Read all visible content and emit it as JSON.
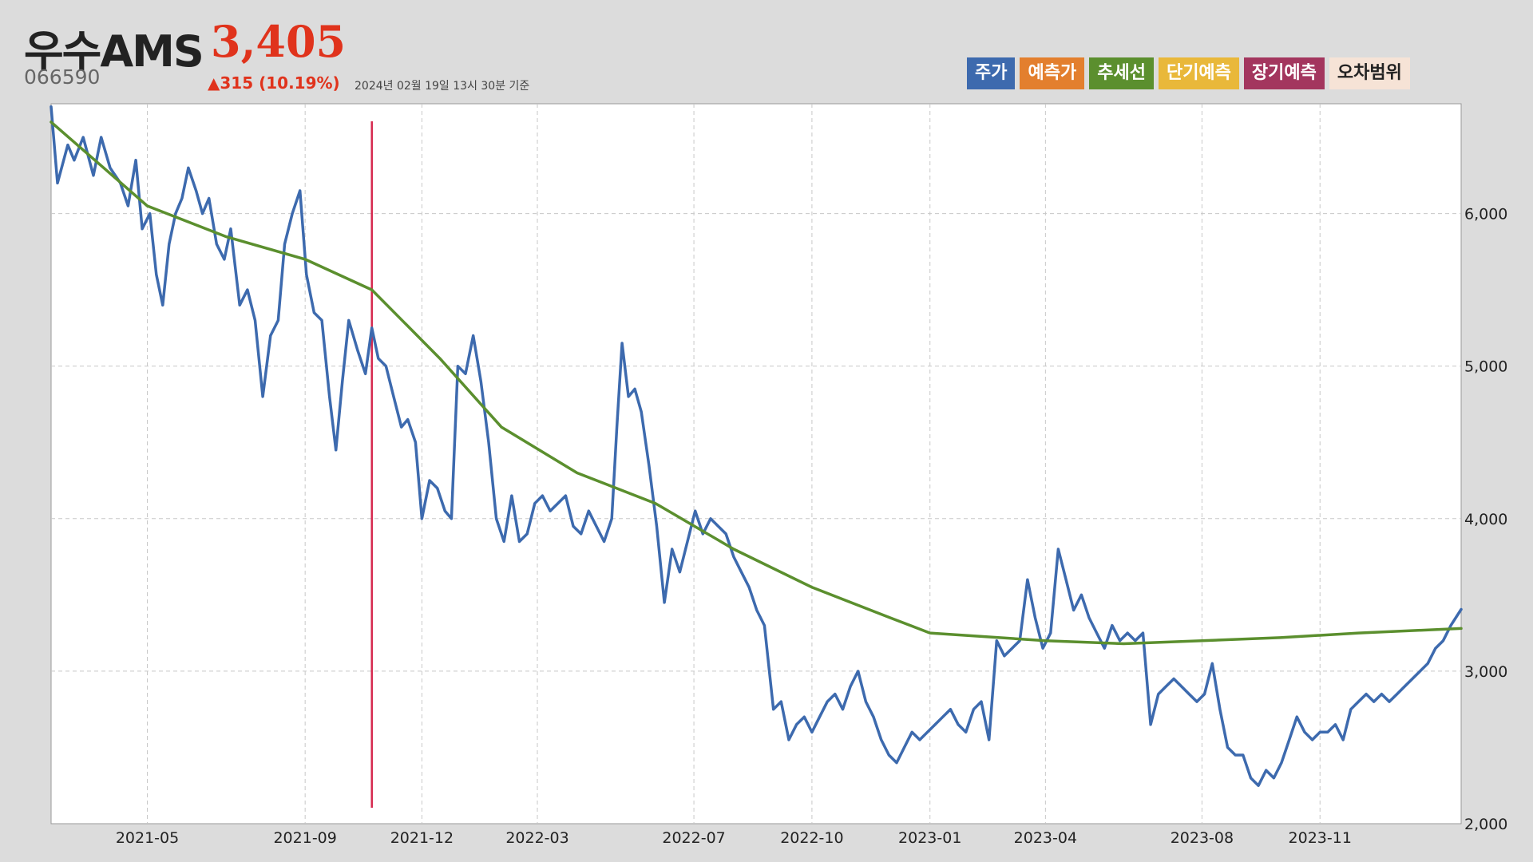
{
  "header": {
    "name": "우수AMS",
    "price": "3,405",
    "code": "066590",
    "change": "▲315 (10.19%)",
    "date": "2024년 02월 19일 13시 30분 기준"
  },
  "legend": [
    {
      "label": "주가",
      "color": "#3d6aae"
    },
    {
      "label": "예측가",
      "color": "#e37f2e"
    },
    {
      "label": "추세선",
      "color": "#5b8f2e"
    },
    {
      "label": "단기예측",
      "color": "#e9b83a"
    },
    {
      "label": "장기예측",
      "color": "#a3365e"
    },
    {
      "label": "오차범위",
      "color": "#f6e3d6"
    }
  ],
  "chart_data": {
    "type": "line",
    "title": "",
    "xlabel": "",
    "ylabel": "",
    "ylim": [
      2000,
      6720
    ],
    "xlim": [
      "2021-02-15",
      "2024-02-19"
    ],
    "grid": true,
    "y_ticks": [
      {
        "value": 2000,
        "label": "2,000"
      },
      {
        "value": 3000,
        "label": "3,000"
      },
      {
        "value": 4000,
        "label": "4,000"
      },
      {
        "value": 5000,
        "label": "5,000"
      },
      {
        "value": 6000,
        "label": "6,000"
      }
    ],
    "x_ticks": [
      {
        "value": "2021-05-01",
        "label": "2021-05"
      },
      {
        "value": "2021-09-01",
        "label": "2021-09"
      },
      {
        "value": "2021-12-01",
        "label": "2021-12"
      },
      {
        "value": "2022-03-01",
        "label": "2022-03"
      },
      {
        "value": "2022-07-01",
        "label": "2022-07"
      },
      {
        "value": "2022-10-01",
        "label": "2022-10"
      },
      {
        "value": "2023-01-01",
        "label": "2023-01"
      },
      {
        "value": "2023-04-01",
        "label": "2023-04"
      },
      {
        "value": "2023-08-01",
        "label": "2023-08"
      },
      {
        "value": "2023-11-01",
        "label": "2023-11"
      }
    ],
    "marker_line": {
      "x": "2021-10-23",
      "color": "#d6294f"
    },
    "series": [
      {
        "name": "주가",
        "color": "#3d6aae",
        "points": [
          [
            "2021-02-15",
            6700
          ],
          [
            "2021-02-20",
            6200
          ],
          [
            "2021-02-28",
            6450
          ],
          [
            "2021-03-05",
            6350
          ],
          [
            "2021-03-12",
            6500
          ],
          [
            "2021-03-20",
            6250
          ],
          [
            "2021-03-26",
            6500
          ],
          [
            "2021-04-02",
            6300
          ],
          [
            "2021-04-10",
            6200
          ],
          [
            "2021-04-16",
            6050
          ],
          [
            "2021-04-22",
            6350
          ],
          [
            "2021-04-27",
            5900
          ],
          [
            "2021-05-03",
            6000
          ],
          [
            "2021-05-08",
            5600
          ],
          [
            "2021-05-13",
            5400
          ],
          [
            "2021-05-18",
            5800
          ],
          [
            "2021-05-23",
            6000
          ],
          [
            "2021-05-28",
            6100
          ],
          [
            "2021-06-02",
            6300
          ],
          [
            "2021-06-08",
            6150
          ],
          [
            "2021-06-13",
            6000
          ],
          [
            "2021-06-18",
            6100
          ],
          [
            "2021-06-24",
            5800
          ],
          [
            "2021-06-30",
            5700
          ],
          [
            "2021-07-05",
            5900
          ],
          [
            "2021-07-12",
            5400
          ],
          [
            "2021-07-18",
            5500
          ],
          [
            "2021-07-24",
            5300
          ],
          [
            "2021-07-30",
            4800
          ],
          [
            "2021-08-05",
            5200
          ],
          [
            "2021-08-11",
            5300
          ],
          [
            "2021-08-16",
            5800
          ],
          [
            "2021-08-22",
            6000
          ],
          [
            "2021-08-28",
            6150
          ],
          [
            "2021-09-02",
            5600
          ],
          [
            "2021-09-08",
            5350
          ],
          [
            "2021-09-14",
            5300
          ],
          [
            "2021-09-20",
            4800
          ],
          [
            "2021-09-25",
            4450
          ],
          [
            "2021-09-30",
            4900
          ],
          [
            "2021-10-05",
            5300
          ],
          [
            "2021-10-12",
            5100
          ],
          [
            "2021-10-18",
            4950
          ],
          [
            "2021-10-23",
            5250
          ],
          [
            "2021-10-28",
            5050
          ],
          [
            "2021-11-03",
            5000
          ],
          [
            "2021-11-09",
            4800
          ],
          [
            "2021-11-15",
            4600
          ],
          [
            "2021-11-20",
            4650
          ],
          [
            "2021-11-26",
            4500
          ],
          [
            "2021-12-01",
            4000
          ],
          [
            "2021-12-07",
            4250
          ],
          [
            "2021-12-13",
            4200
          ],
          [
            "2021-12-19",
            4050
          ],
          [
            "2021-12-24",
            4000
          ],
          [
            "2021-12-29",
            5000
          ],
          [
            "2022-01-04",
            4950
          ],
          [
            "2022-01-10",
            5200
          ],
          [
            "2022-01-16",
            4900
          ],
          [
            "2022-01-22",
            4500
          ],
          [
            "2022-01-28",
            4000
          ],
          [
            "2022-02-03",
            3850
          ],
          [
            "2022-02-09",
            4150
          ],
          [
            "2022-02-15",
            3850
          ],
          [
            "2022-02-21",
            3900
          ],
          [
            "2022-02-27",
            4100
          ],
          [
            "2022-03-05",
            4150
          ],
          [
            "2022-03-11",
            4050
          ],
          [
            "2022-03-17",
            4100
          ],
          [
            "2022-03-23",
            4150
          ],
          [
            "2022-03-29",
            3950
          ],
          [
            "2022-04-04",
            3900
          ],
          [
            "2022-04-10",
            4050
          ],
          [
            "2022-04-16",
            3950
          ],
          [
            "2022-04-22",
            3850
          ],
          [
            "2022-04-28",
            4000
          ],
          [
            "2022-05-02",
            4600
          ],
          [
            "2022-05-06",
            5150
          ],
          [
            "2022-05-11",
            4800
          ],
          [
            "2022-05-16",
            4850
          ],
          [
            "2022-05-21",
            4700
          ],
          [
            "2022-05-27",
            4350
          ],
          [
            "2022-06-02",
            3950
          ],
          [
            "2022-06-08",
            3450
          ],
          [
            "2022-06-14",
            3800
          ],
          [
            "2022-06-20",
            3650
          ],
          [
            "2022-06-26",
            3850
          ],
          [
            "2022-07-02",
            4050
          ],
          [
            "2022-07-08",
            3900
          ],
          [
            "2022-07-14",
            4000
          ],
          [
            "2022-07-20",
            3950
          ],
          [
            "2022-07-26",
            3900
          ],
          [
            "2022-08-01",
            3750
          ],
          [
            "2022-08-07",
            3650
          ],
          [
            "2022-08-13",
            3550
          ],
          [
            "2022-08-19",
            3400
          ],
          [
            "2022-08-25",
            3300
          ],
          [
            "2022-09-01",
            2750
          ],
          [
            "2022-09-07",
            2800
          ],
          [
            "2022-09-13",
            2550
          ],
          [
            "2022-09-19",
            2650
          ],
          [
            "2022-09-25",
            2700
          ],
          [
            "2022-10-01",
            2600
          ],
          [
            "2022-10-07",
            2700
          ],
          [
            "2022-10-13",
            2800
          ],
          [
            "2022-10-19",
            2850
          ],
          [
            "2022-10-25",
            2750
          ],
          [
            "2022-10-31",
            2900
          ],
          [
            "2022-11-06",
            3000
          ],
          [
            "2022-11-12",
            2800
          ],
          [
            "2022-11-18",
            2700
          ],
          [
            "2022-11-24",
            2550
          ],
          [
            "2022-11-30",
            2450
          ],
          [
            "2022-12-06",
            2400
          ],
          [
            "2022-12-12",
            2500
          ],
          [
            "2022-12-18",
            2600
          ],
          [
            "2022-12-24",
            2550
          ],
          [
            "2022-12-30",
            2600
          ],
          [
            "2023-01-05",
            2650
          ],
          [
            "2023-01-11",
            2700
          ],
          [
            "2023-01-17",
            2750
          ],
          [
            "2023-01-23",
            2650
          ],
          [
            "2023-01-29",
            2600
          ],
          [
            "2023-02-04",
            2750
          ],
          [
            "2023-02-10",
            2800
          ],
          [
            "2023-02-16",
            2550
          ],
          [
            "2023-02-22",
            3200
          ],
          [
            "2023-02-28",
            3100
          ],
          [
            "2023-03-06",
            3150
          ],
          [
            "2023-03-12",
            3200
          ],
          [
            "2023-03-18",
            3600
          ],
          [
            "2023-03-24",
            3350
          ],
          [
            "2023-03-30",
            3150
          ],
          [
            "2023-04-05",
            3250
          ],
          [
            "2023-04-11",
            3800
          ],
          [
            "2023-04-17",
            3600
          ],
          [
            "2023-04-23",
            3400
          ],
          [
            "2023-04-29",
            3500
          ],
          [
            "2023-05-05",
            3350
          ],
          [
            "2023-05-11",
            3250
          ],
          [
            "2023-05-17",
            3150
          ],
          [
            "2023-05-23",
            3300
          ],
          [
            "2023-05-29",
            3200
          ],
          [
            "2023-06-04",
            3250
          ],
          [
            "2023-06-10",
            3200
          ],
          [
            "2023-06-16",
            3250
          ],
          [
            "2023-06-22",
            2650
          ],
          [
            "2023-06-28",
            2850
          ],
          [
            "2023-07-04",
            2900
          ],
          [
            "2023-07-10",
            2950
          ],
          [
            "2023-07-16",
            2900
          ],
          [
            "2023-07-22",
            2850
          ],
          [
            "2023-07-28",
            2800
          ],
          [
            "2023-08-03",
            2850
          ],
          [
            "2023-08-09",
            3050
          ],
          [
            "2023-08-15",
            2750
          ],
          [
            "2023-08-21",
            2500
          ],
          [
            "2023-08-27",
            2450
          ],
          [
            "2023-09-02",
            2450
          ],
          [
            "2023-09-08",
            2300
          ],
          [
            "2023-09-14",
            2250
          ],
          [
            "2023-09-20",
            2350
          ],
          [
            "2023-09-26",
            2300
          ],
          [
            "2023-10-02",
            2400
          ],
          [
            "2023-10-08",
            2550
          ],
          [
            "2023-10-14",
            2700
          ],
          [
            "2023-10-20",
            2600
          ],
          [
            "2023-10-26",
            2550
          ],
          [
            "2023-11-01",
            2600
          ],
          [
            "2023-11-07",
            2600
          ],
          [
            "2023-11-13",
            2650
          ],
          [
            "2023-11-19",
            2550
          ],
          [
            "2023-11-25",
            2750
          ],
          [
            "2023-12-01",
            2800
          ],
          [
            "2023-12-07",
            2850
          ],
          [
            "2023-12-13",
            2800
          ],
          [
            "2023-12-19",
            2850
          ],
          [
            "2023-12-25",
            2800
          ],
          [
            "2023-12-31",
            2850
          ],
          [
            "2024-01-06",
            2900
          ],
          [
            "2024-01-12",
            2950
          ],
          [
            "2024-01-18",
            3000
          ],
          [
            "2024-01-24",
            3050
          ],
          [
            "2024-01-30",
            3150
          ],
          [
            "2024-02-05",
            3200
          ],
          [
            "2024-02-11",
            3300
          ],
          [
            "2024-02-19",
            3405
          ]
        ]
      },
      {
        "name": "추세선",
        "color": "#5b8f2e",
        "points": [
          [
            "2021-02-15",
            6600
          ],
          [
            "2021-05-01",
            6050
          ],
          [
            "2021-07-01",
            5850
          ],
          [
            "2021-09-01",
            5700
          ],
          [
            "2021-10-23",
            5500
          ],
          [
            "2021-12-15",
            5050
          ],
          [
            "2022-02-01",
            4600
          ],
          [
            "2022-04-01",
            4300
          ],
          [
            "2022-06-01",
            4100
          ],
          [
            "2022-08-01",
            3800
          ],
          [
            "2022-10-01",
            3550
          ],
          [
            "2022-12-01",
            3350
          ],
          [
            "2023-01-01",
            3250
          ],
          [
            "2023-04-01",
            3200
          ],
          [
            "2023-06-01",
            3180
          ],
          [
            "2023-08-01",
            3200
          ],
          [
            "2023-10-01",
            3220
          ],
          [
            "2023-12-01",
            3250
          ],
          [
            "2024-02-19",
            3280
          ]
        ]
      }
    ]
  }
}
